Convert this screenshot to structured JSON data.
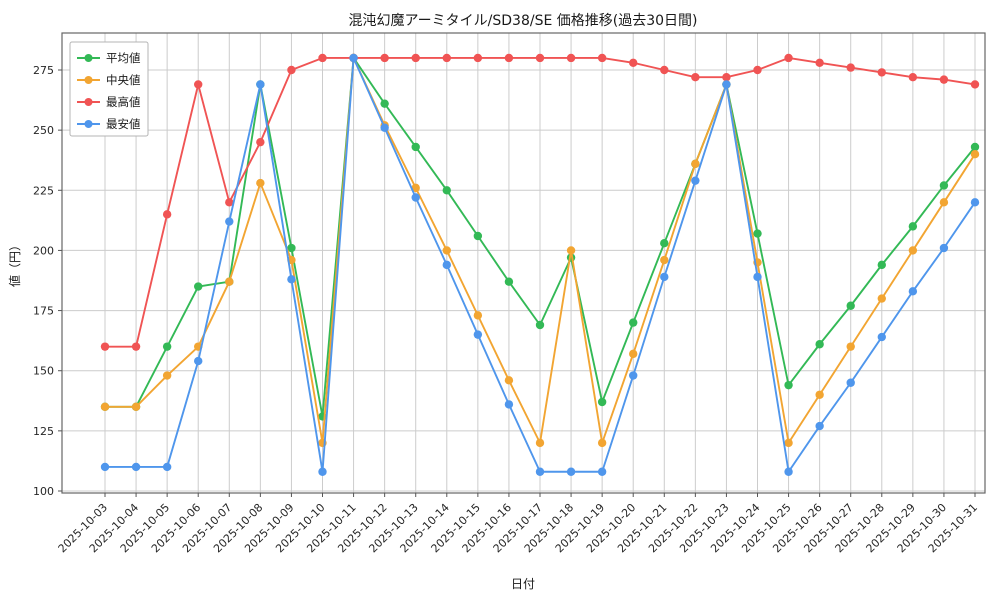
{
  "chart_data": {
    "type": "line",
    "title": "混沌幻魔アーミタイル/SD38/SE 価格推移(過去30日間)",
    "xlabel": "日付",
    "ylabel": "値（円）",
    "grid": true,
    "legend_position": "upper-left",
    "yticks": [
      100,
      125,
      150,
      175,
      200,
      225,
      250,
      275
    ],
    "ylim": [
      99,
      290
    ],
    "grid_color": "#cccccc",
    "axis_color": "#666666",
    "tick_color": "#555555",
    "x": [
      "2025-10-03",
      "2025-10-04",
      "2025-10-05",
      "2025-10-06",
      "2025-10-07",
      "2025-10-08",
      "2025-10-09",
      "2025-10-10",
      "2025-10-11",
      "2025-10-12",
      "2025-10-13",
      "2025-10-14",
      "2025-10-15",
      "2025-10-16",
      "2025-10-17",
      "2025-10-18",
      "2025-10-19",
      "2025-10-20",
      "2025-10-21",
      "2025-10-22",
      "2025-10-23",
      "2025-10-24",
      "2025-10-25",
      "2025-10-26",
      "2025-10-27",
      "2025-10-28",
      "2025-10-29",
      "2025-10-30",
      "2025-10-31"
    ],
    "series": [
      {
        "key": "average",
        "name": "平均値",
        "color": "#33b956",
        "values": [
          135,
          135,
          160,
          185,
          187,
          269,
          201,
          131,
          280,
          261,
          243,
          225,
          206,
          187,
          169,
          197,
          137,
          170,
          203,
          236,
          269,
          207,
          144,
          161,
          177,
          194,
          210,
          227,
          243
        ]
      },
      {
        "key": "median",
        "name": "中央値",
        "color": "#f2a532",
        "values": [
          135,
          135,
          148,
          160,
          187,
          228,
          196,
          120,
          280,
          252,
          226,
          200,
          173,
          146,
          120,
          200,
          120,
          157,
          196,
          236,
          269,
          195,
          120,
          140,
          160,
          180,
          200,
          220,
          240
        ]
      },
      {
        "key": "highest",
        "name": "最高値",
        "color": "#f05454",
        "values": [
          160,
          160,
          215,
          269,
          220,
          245,
          275,
          280,
          280,
          280,
          280,
          280,
          280,
          280,
          280,
          280,
          280,
          278,
          275,
          272,
          272,
          275,
          280,
          278,
          276,
          274,
          272,
          271,
          269
        ]
      },
      {
        "key": "lowest",
        "name": "最安値",
        "color": "#4f96ec",
        "values": [
          110,
          110,
          110,
          154,
          212,
          269,
          188,
          108,
          280,
          251,
          222,
          194,
          165,
          136,
          108,
          108,
          108,
          148,
          189,
          229,
          269,
          189,
          108,
          127,
          145,
          164,
          183,
          201,
          220
        ]
      }
    ]
  }
}
